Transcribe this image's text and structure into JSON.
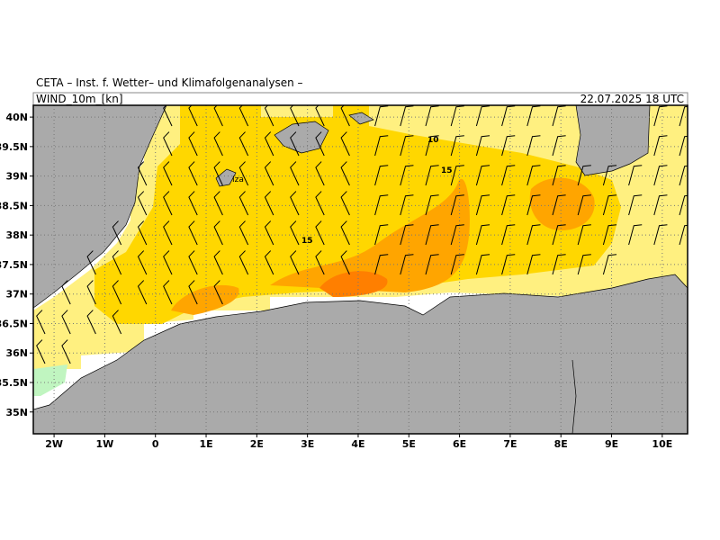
{
  "header": {
    "title": "CETA – Inst. f. Wetter– und Klimafolgenanalysen –",
    "field": "WIND_10m_[kn]",
    "valid": "22.07.2025 18 UTC"
  },
  "map": {
    "lon_range": [
      -2.41,
      10.5
    ],
    "lat_range": [
      34.63,
      40.2
    ],
    "lon_ticks": [
      {
        "value": -2,
        "label": "2W"
      },
      {
        "value": -1,
        "label": "1W"
      },
      0,
      {
        "value": 1,
        "label": "1E"
      },
      {
        "value": 2,
        "label": "2E"
      },
      {
        "value": 3,
        "label": "3E"
      },
      {
        "value": 4,
        "label": "4E"
      },
      {
        "value": 5,
        "label": "5E"
      },
      {
        "value": 6,
        "label": "6E"
      },
      {
        "value": 7,
        "label": "7E"
      },
      {
        "value": 8,
        "label": "8E"
      },
      {
        "value": 9,
        "label": "9E"
      },
      {
        "value": 10,
        "label": "10E"
      }
    ],
    "lat_ticks": [
      {
        "value": 40,
        "label": "40N"
      },
      {
        "value": 39.5,
        "label": "39.5N"
      },
      {
        "value": 39,
        "label": "39N"
      },
      {
        "value": 38.5,
        "label": "38.5N"
      },
      {
        "value": 38,
        "label": "38N"
      },
      {
        "value": 37.5,
        "label": "37.5N"
      },
      {
        "value": 37,
        "label": "37N"
      },
      {
        "value": 36.5,
        "label": "36.5N"
      },
      {
        "value": 36,
        "label": "36N"
      },
      {
        "value": 35.5,
        "label": "35.5N"
      },
      {
        "value": 35,
        "label": "35N"
      }
    ],
    "contour_labels": [
      "10",
      "15",
      "15"
    ],
    "place_label": "Iza"
  }
}
